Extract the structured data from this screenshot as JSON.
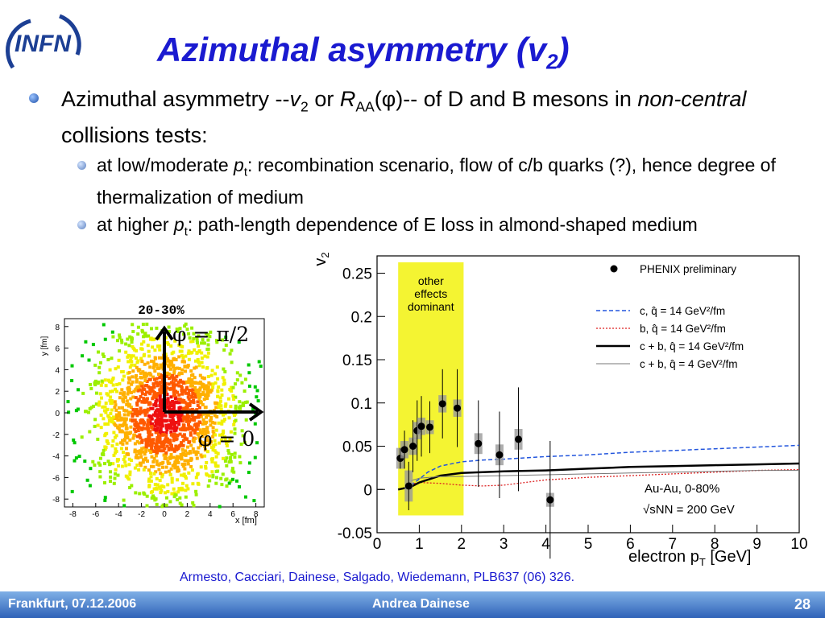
{
  "logo": {
    "text": "INFN"
  },
  "title": {
    "main": "Azimuthal asymmetry (v",
    "sub": "2",
    "close": ")"
  },
  "bullet1": {
    "a": "Azimuthal asymmetry --",
    "v": "v",
    "vsub": "2",
    "or": " or ",
    "R": "R",
    "Rsub": "AA",
    "phi": "(φ)",
    "b": "-- of D and B mesons in ",
    "nc": "non-central",
    "c": " collisions tests:"
  },
  "sub1": {
    "a": "at low/moderate ",
    "p": "p",
    "psub": "t",
    "b": ": recombination scenario, flow of c/b quarks (?), hence degree of thermalization of medium"
  },
  "sub2": {
    "a": "at higher ",
    "p": "p",
    "psub": "t",
    "b": ": path-length dependence of E loss in almond-shaped medium"
  },
  "left_plot": {
    "title": "20-30%",
    "ylabel": "y [fm]",
    "xlabel": "x [fm]",
    "ticks": [
      "-8",
      "-6",
      "-4",
      "-2",
      "0",
      "2",
      "4",
      "6",
      "8"
    ],
    "arrow_up": "φ = π/2",
    "arrow_right": "φ = 0"
  },
  "chart_data": {
    "type": "scatter",
    "title": "",
    "xlabel": "electron p",
    "xlabel_sub": "T",
    "xlabel_unit": " [GeV]",
    "ylabel": "v",
    "ylabel_sub": "2",
    "xlim": [
      0,
      10
    ],
    "ylim": [
      -0.05,
      0.27
    ],
    "xticks": [
      0,
      1,
      2,
      3,
      4,
      5,
      6,
      7,
      8,
      9,
      10
    ],
    "yticks": [
      -0.05,
      0,
      0.05,
      0.1,
      0.15,
      0.2,
      0.25
    ],
    "ytick_labels": [
      "-0.05",
      "0",
      "0.05",
      "0.1",
      "0.15",
      "0.2",
      "0.25"
    ],
    "band": {
      "x": [
        0.5,
        2.05
      ],
      "color": "#f4f432",
      "label": [
        "other",
        "effects",
        "dominant"
      ]
    },
    "series": [
      {
        "name": "PHENIX preliminary",
        "points": [
          {
            "x": 0.55,
            "y": 0.036,
            "err": 0.012,
            "sys": 0.012
          },
          {
            "x": 0.65,
            "y": 0.046,
            "err": 0.022,
            "sys": 0.01
          },
          {
            "x": 0.75,
            "y": 0.004,
            "err": 0.028,
            "sys": 0.018
          },
          {
            "x": 0.85,
            "y": 0.05,
            "err": 0.03,
            "sys": 0.01
          },
          {
            "x": 0.95,
            "y": 0.068,
            "err": 0.035,
            "sys": 0.01
          },
          {
            "x": 1.05,
            "y": 0.073,
            "err": 0.035,
            "sys": 0.01
          },
          {
            "x": 1.25,
            "y": 0.072,
            "err": 0.03,
            "sys": 0.008
          },
          {
            "x": 1.55,
            "y": 0.099,
            "err": 0.04,
            "sys": 0.01
          },
          {
            "x": 1.9,
            "y": 0.094,
            "err": 0.045,
            "sys": 0.01
          },
          {
            "x": 2.4,
            "y": 0.053,
            "err": 0.05,
            "sys": 0.012
          },
          {
            "x": 2.9,
            "y": 0.04,
            "err": 0.05,
            "sys": 0.012
          },
          {
            "x": 3.35,
            "y": 0.058,
            "err": 0.06,
            "sys": 0.012
          },
          {
            "x": 4.1,
            "y": -0.012,
            "err": 0.068,
            "sys": 0.008
          }
        ]
      }
    ],
    "curves": [
      {
        "name": "c, q̂ = 14 GeV²/fm",
        "color": "#2255dd",
        "dash": "5,3",
        "width": 1.5,
        "x": [
          0.8,
          1.0,
          1.2,
          1.5,
          2.0,
          2.5,
          3.0,
          4.0,
          5.0,
          6.0,
          7.0,
          8.0,
          9.0,
          10.0
        ],
        "y": [
          0.005,
          0.012,
          0.02,
          0.027,
          0.032,
          0.034,
          0.035,
          0.038,
          0.04,
          0.043,
          0.045,
          0.047,
          0.049,
          0.051
        ]
      },
      {
        "name": "b, q̂ = 14 GeV²/fm",
        "color": "#dd2222",
        "dash": "2,2",
        "width": 1.3,
        "x": [
          0.8,
          1.0,
          1.5,
          2.0,
          2.5,
          3.0,
          3.5,
          4.0,
          5.0,
          6.0,
          7.0,
          8.0,
          9.0,
          10.0
        ],
        "y": [
          0.006,
          0.008,
          0.007,
          0.005,
          0.004,
          0.005,
          0.008,
          0.011,
          0.014,
          0.016,
          0.018,
          0.02,
          0.022,
          0.023
        ]
      },
      {
        "name": "c + b, q̂ = 14 GeV²/fm",
        "color": "#000000",
        "dash": "",
        "width": 2.5,
        "x": [
          0.5,
          0.8,
          1.0,
          1.5,
          2.0,
          2.5,
          3.0,
          4.0,
          5.0,
          6.0,
          7.0,
          8.0,
          9.0,
          10.0
        ],
        "y": [
          0.0,
          0.003,
          0.008,
          0.016,
          0.019,
          0.02,
          0.021,
          0.022,
          0.024,
          0.026,
          0.027,
          0.028,
          0.029,
          0.03
        ]
      },
      {
        "name": "c + b, q̂ = 4 GeV²/fm",
        "color": "#777777",
        "dash": "",
        "width": 1,
        "x": [
          0.8,
          1.0,
          1.5,
          2.0,
          3.0,
          4.0,
          5.0,
          6.0,
          7.0,
          8.0,
          9.0,
          10.0
        ],
        "y": [
          0.01,
          0.013,
          0.015,
          0.015,
          0.016,
          0.017,
          0.018,
          0.019,
          0.02,
          0.021,
          0.022,
          0.022
        ]
      }
    ],
    "annotations": [
      "Au-Au, 0-80%",
      "√sNN = 200 GeV"
    ],
    "legend_placement": "top-right"
  },
  "citation": "Armesto, Cacciari, Dainese, Salgado, Wiedemann, PLB637 (06) 326.",
  "footer": {
    "left": "Frankfurt, 07.12.2006",
    "center": "Andrea Dainese",
    "page": "28"
  },
  "colors": {
    "title": "#1a1ad0",
    "footer": "#2f62b8"
  }
}
